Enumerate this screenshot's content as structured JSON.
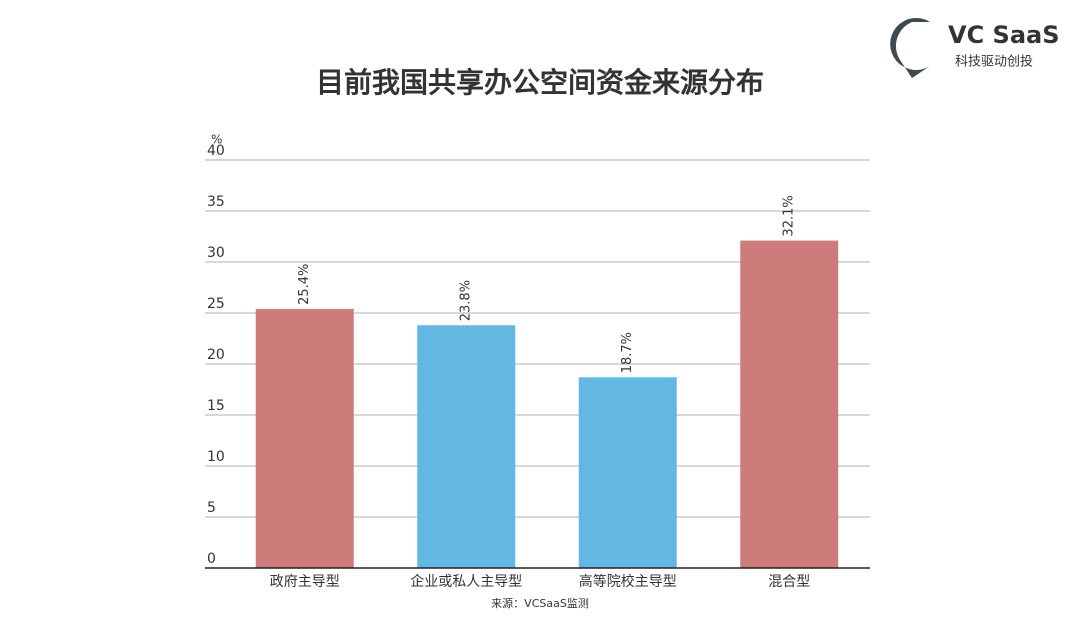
{
  "brand": {
    "name": "VC SaaS",
    "tagline": "科技驱动创投"
  },
  "chart_data": {
    "type": "bar",
    "title": "目前我国共享办公空间资金来源分布",
    "ylabel": "%",
    "categories": [
      "政府主导型",
      "企业或私人主导型",
      "高等院校主导型",
      "混合型"
    ],
    "values": [
      25.4,
      23.8,
      18.7,
      32.1
    ],
    "value_labels": [
      "25.4%",
      "23.8%",
      "18.7%",
      "32.1%"
    ],
    "colors": [
      "#cd7b7b",
      "#63b8e3",
      "#63b8e3",
      "#cd7b7b"
    ],
    "ylim": [
      0,
      40
    ],
    "yticks": [
      0,
      5,
      10,
      15,
      20,
      25,
      30,
      35,
      40
    ],
    "grid": true,
    "source": "来源：VCSaaS监测"
  }
}
